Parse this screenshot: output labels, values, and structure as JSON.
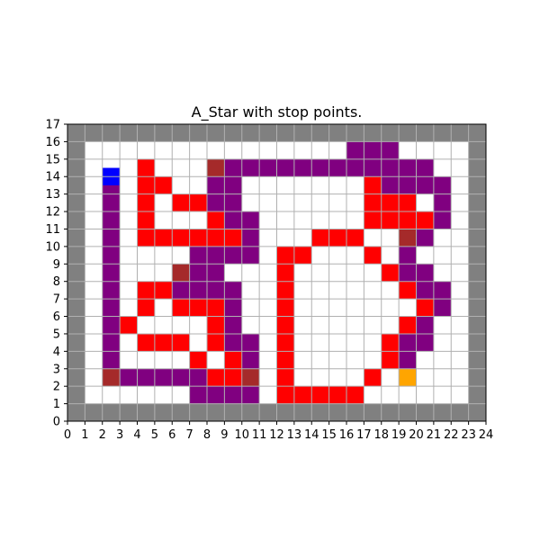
{
  "chart_data": {
    "type": "heatmap",
    "title": "A_Star with stop points.",
    "xlabel": "",
    "ylabel": "",
    "xlim": [
      0,
      24
    ],
    "ylim": [
      0,
      17
    ],
    "xticks": [
      "0",
      "1",
      "2",
      "3",
      "4",
      "5",
      "6",
      "7",
      "8",
      "9",
      "10",
      "11",
      "12",
      "13",
      "14",
      "15",
      "16",
      "17",
      "18",
      "19",
      "20",
      "21",
      "22",
      "23",
      "24"
    ],
    "yticks": [
      "0",
      "1",
      "2",
      "3",
      "4",
      "5",
      "6",
      "7",
      "8",
      "9",
      "10",
      "11",
      "12",
      "13",
      "14",
      "15",
      "16",
      "17"
    ],
    "grid": true,
    "legend": "none",
    "colors": {
      "wall": "#808080",
      "explored": "#ff0000",
      "path": "#800080",
      "stop_point": "#a52a2a",
      "start": "#0000ff",
      "goal": "#ffa500",
      "free": "#ffffff",
      "grid": "#b0b0b0"
    },
    "cells": {
      "explored": [
        [
          4,
          14
        ],
        [
          4,
          13
        ],
        [
          5,
          13
        ],
        [
          4,
          12
        ],
        [
          6,
          12
        ],
        [
          7,
          12
        ],
        [
          4,
          11
        ],
        [
          8,
          11
        ],
        [
          4,
          10
        ],
        [
          5,
          10
        ],
        [
          6,
          10
        ],
        [
          7,
          10
        ],
        [
          8,
          10
        ],
        [
          9,
          10
        ],
        [
          12,
          9
        ],
        [
          13,
          9
        ],
        [
          14,
          10
        ],
        [
          15,
          10
        ],
        [
          16,
          10
        ],
        [
          17,
          9
        ],
        [
          17,
          13
        ],
        [
          17,
          12
        ],
        [
          18,
          12
        ],
        [
          19,
          12
        ],
        [
          17,
          11
        ],
        [
          18,
          11
        ],
        [
          19,
          11
        ],
        [
          20,
          11
        ],
        [
          18,
          8
        ],
        [
          19,
          7
        ],
        [
          20,
          6
        ],
        [
          19,
          5
        ],
        [
          18,
          4
        ],
        [
          18,
          3
        ],
        [
          17,
          2
        ],
        [
          12,
          8
        ],
        [
          12,
          7
        ],
        [
          12,
          6
        ],
        [
          12,
          5
        ],
        [
          12,
          4
        ],
        [
          12,
          3
        ],
        [
          12,
          2
        ],
        [
          12,
          1
        ],
        [
          13,
          1
        ],
        [
          14,
          1
        ],
        [
          15,
          1
        ],
        [
          16,
          1
        ],
        [
          4,
          7
        ],
        [
          5,
          7
        ],
        [
          4,
          6
        ],
        [
          6,
          6
        ],
        [
          7,
          6
        ],
        [
          8,
          6
        ],
        [
          3,
          5
        ],
        [
          8,
          5
        ],
        [
          4,
          4
        ],
        [
          5,
          4
        ],
        [
          6,
          4
        ],
        [
          8,
          4
        ],
        [
          7,
          3
        ],
        [
          9,
          3
        ],
        [
          8,
          2
        ],
        [
          9,
          2
        ]
      ],
      "path": [
        [
          2,
          13
        ],
        [
          2,
          12
        ],
        [
          2,
          11
        ],
        [
          2,
          10
        ],
        [
          2,
          9
        ],
        [
          2,
          8
        ],
        [
          2,
          7
        ],
        [
          2,
          6
        ],
        [
          2,
          5
        ],
        [
          2,
          4
        ],
        [
          2,
          3
        ],
        [
          3,
          2
        ],
        [
          4,
          2
        ],
        [
          5,
          2
        ],
        [
          6,
          2
        ],
        [
          7,
          2
        ],
        [
          7,
          1
        ],
        [
          8,
          1
        ],
        [
          9,
          1
        ],
        [
          10,
          1
        ],
        [
          10,
          3
        ],
        [
          10,
          4
        ],
        [
          9,
          5
        ],
        [
          9,
          6
        ],
        [
          9,
          7
        ],
        [
          9,
          4
        ],
        [
          6,
          7
        ],
        [
          7,
          7
        ],
        [
          8,
          7
        ],
        [
          7,
          8
        ],
        [
          8,
          8
        ],
        [
          7,
          9
        ],
        [
          8,
          9
        ],
        [
          9,
          9
        ],
        [
          10,
          9
        ],
        [
          10,
          10
        ],
        [
          10,
          11
        ],
        [
          9,
          11
        ],
        [
          9,
          12
        ],
        [
          8,
          12
        ],
        [
          8,
          13
        ],
        [
          9,
          13
        ],
        [
          9,
          14
        ],
        [
          10,
          14
        ],
        [
          11,
          14
        ],
        [
          12,
          14
        ],
        [
          13,
          14
        ],
        [
          14,
          14
        ],
        [
          15,
          14
        ],
        [
          16,
          14
        ],
        [
          17,
          14
        ],
        [
          16,
          15
        ],
        [
          17,
          15
        ],
        [
          18,
          15
        ],
        [
          18,
          14
        ],
        [
          19,
          14
        ],
        [
          20,
          14
        ],
        [
          18,
          13
        ],
        [
          19,
          13
        ],
        [
          20,
          13
        ],
        [
          21,
          13
        ],
        [
          21,
          12
        ],
        [
          21,
          11
        ],
        [
          20,
          10
        ],
        [
          19,
          9
        ],
        [
          19,
          8
        ],
        [
          20,
          8
        ],
        [
          20,
          7
        ],
        [
          21,
          7
        ],
        [
          21,
          6
        ],
        [
          20,
          5
        ],
        [
          19,
          4
        ],
        [
          19,
          3
        ],
        [
          20,
          4
        ]
      ],
      "stop_point": [
        [
          8,
          14
        ],
        [
          6,
          8
        ],
        [
          19,
          10
        ],
        [
          2,
          2
        ],
        [
          10,
          2
        ]
      ],
      "start": [
        [
          2,
          13.5
        ]
      ],
      "goal": [
        [
          19,
          2
        ]
      ]
    }
  }
}
